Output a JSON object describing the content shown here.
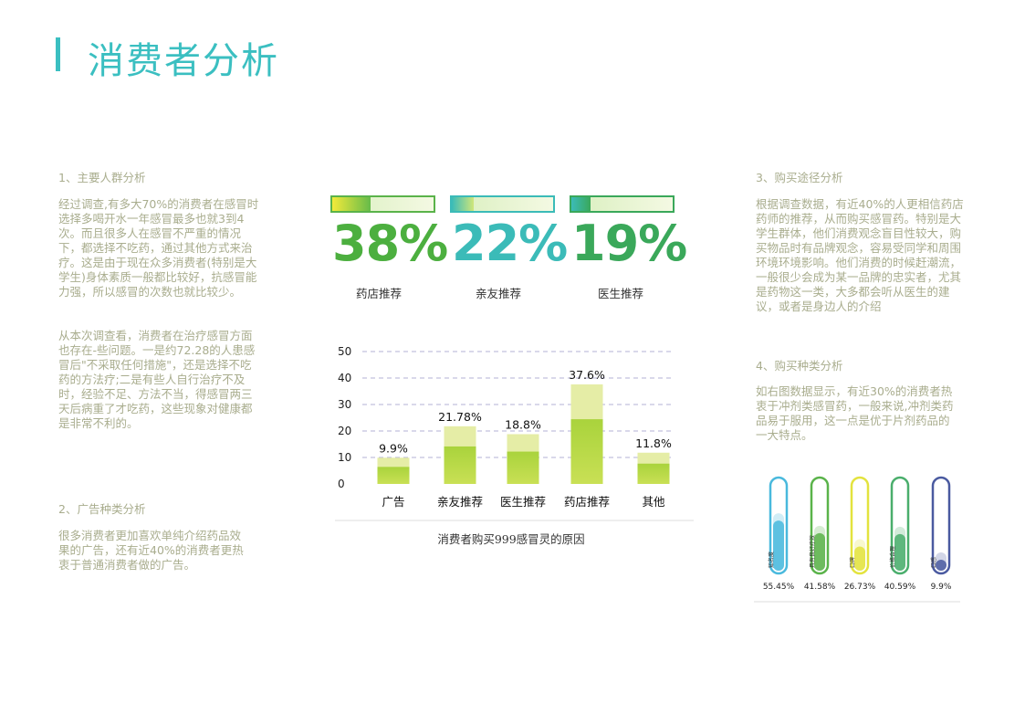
{
  "page": {
    "title": "消费者分析"
  },
  "sections": {
    "s1": {
      "heading": "1、主要人群分析",
      "p1": "经过调查,有多大70%的消费者在感冒时选择多喝开水一年感冒最多也就3到4次。而且很多人在感冒不严重的情况下，都选择不吃药，通过其他方式来治疗。这是由于现在众多消费者(特别是大学生)身体素质一般都比较好，抗感冒能力强，所以感冒的次数也就比较少。",
      "p2": "从本次调查看，消费者在治疗感冒方面也存在-些问题。一是约72.28的人患感冒后\"不采取任何措施\"，还是选择不吃药的方法疗;二是有些人自行治疗不及时，经验不足、方法不当，得感冒两三天后病重了才吃药，这些现象对健康都是非常不利的。"
    },
    "s2": {
      "heading": "2、广告种类分析",
      "p1": "很多消费者更加喜欢单纯介绍药品效果的广告，还有近40%的消费者更热衷于普通消费者做的广告。"
    },
    "s3": {
      "heading": "3、购买途径分析",
      "p1": "根据调查数据，有近40%的人更相信药店药师的推荐，从而购买感冒药。特别是大学生群体，他们消费观念盲目性较大，购买物品时有品牌观念，容易受同学和周围环境环境影响。他们消费的时候赶潮流，一般很少会成为某一品牌的忠实者，尤其是药物这一类，大多都会听从医生的建议，或者是身边人的介绍"
    },
    "s4": {
      "heading": "4、购买种类分析",
      "p1": "如右图数据显示，有近30%的消费者热衷于冲剂类感冒药，一般来说,冲剂类药品易于服用，这一点是优于片剂药品的一大特点。"
    }
  },
  "highlights": [
    {
      "value": "38%",
      "label": "药店推荐",
      "fill_fraction": 0.38,
      "color": "#4caf3f",
      "frame_color": "#5ab34a",
      "fill_from": "#f2ea3a",
      "fill_to": "#66bb4a"
    },
    {
      "value": "22%",
      "label": "亲友推荐",
      "fill_fraction": 0.22,
      "color": "#3bbbb8",
      "frame_color": "#3bbbb8",
      "fill_from": "#3bbbb8",
      "fill_to": "#cfe67a"
    },
    {
      "value": "19%",
      "label": "医生推荐",
      "fill_fraction": 0.19,
      "color": "#3aa85a",
      "frame_color": "#3aa85a",
      "fill_from": "#3bbbb8",
      "fill_to": "#3aa85a"
    }
  ],
  "chart_data": [
    {
      "type": "bar",
      "title": "消费者购买999感冒灵的原因",
      "categories": [
        "广告",
        "亲友推荐",
        "医生推荐",
        "药店推荐",
        "其他"
      ],
      "values": [
        9.9,
        21.78,
        18.8,
        37.6,
        11.8
      ],
      "value_labels": [
        "9.9%",
        "21.78%",
        "18.8%",
        "37.6%",
        "11.8%"
      ],
      "value_label_categories": [
        "广告",
        "亲友推荐",
        "医生推荐",
        "药店推荐",
        "其他"
      ],
      "ylim": [
        0,
        50
      ],
      "yticks": [
        0,
        10,
        20,
        30,
        40,
        50
      ],
      "grid": true,
      "colors": {
        "bar_light": "#e5eda6",
        "bar_dark": "#a9d33c",
        "grid": "#b3b0d6"
      }
    },
    {
      "type": "bar",
      "categories": [
        "知名度",
        "具有良好疗效",
        "口碑",
        "价格合理",
        "口感"
      ],
      "values": [
        55.45,
        41.58,
        26.73,
        40.59,
        9.9
      ],
      "value_labels": [
        "55.45%",
        "41.58%",
        "26.73%",
        "40.59%",
        "9.9%"
      ],
      "colors": [
        "#49b9dd",
        "#5ab34a",
        "#e3e33e",
        "#4aae6c",
        "#4a5aa0"
      ]
    }
  ]
}
